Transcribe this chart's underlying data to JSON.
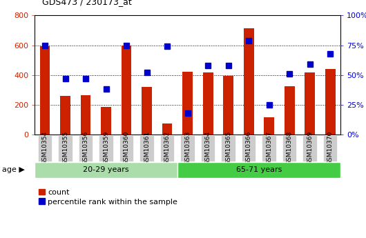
{
  "title": "GDS473 / 230173_at",
  "categories": [
    "GSM10354",
    "GSM10355",
    "GSM10356",
    "GSM10359",
    "GSM10360",
    "GSM10361",
    "GSM10362",
    "GSM10363",
    "GSM10364",
    "GSM10365",
    "GSM10366",
    "GSM10367",
    "GSM10368",
    "GSM10369",
    "GSM10370"
  ],
  "count_values": [
    595,
    260,
    265,
    185,
    600,
    320,
    75,
    420,
    415,
    395,
    715,
    115,
    325,
    415,
    440
  ],
  "percentile_values": [
    75,
    47,
    47,
    38,
    75,
    52,
    74,
    18,
    58,
    58,
    79,
    25,
    51,
    59,
    68
  ],
  "group1_label": "20-29 years",
  "group2_label": "65-71 years",
  "group1_count": 7,
  "group2_count": 8,
  "bar_color": "#cc2200",
  "marker_color": "#0000cc",
  "ylim_left": [
    0,
    800
  ],
  "ylim_right": [
    0,
    100
  ],
  "yticks_left": [
    0,
    200,
    400,
    600,
    800
  ],
  "yticks_right": [
    0,
    25,
    50,
    75,
    100
  ],
  "ytick_labels_right": [
    "0%",
    "25%",
    "50%",
    "75%",
    "100%"
  ],
  "legend_count_label": "count",
  "legend_pct_label": "percentile rank within the sample",
  "age_label": "age",
  "group1_bg": "#aaddaa",
  "group2_bg": "#44cc44",
  "tick_bg": "#cccccc",
  "bar_width": 0.5,
  "marker_size": 6
}
